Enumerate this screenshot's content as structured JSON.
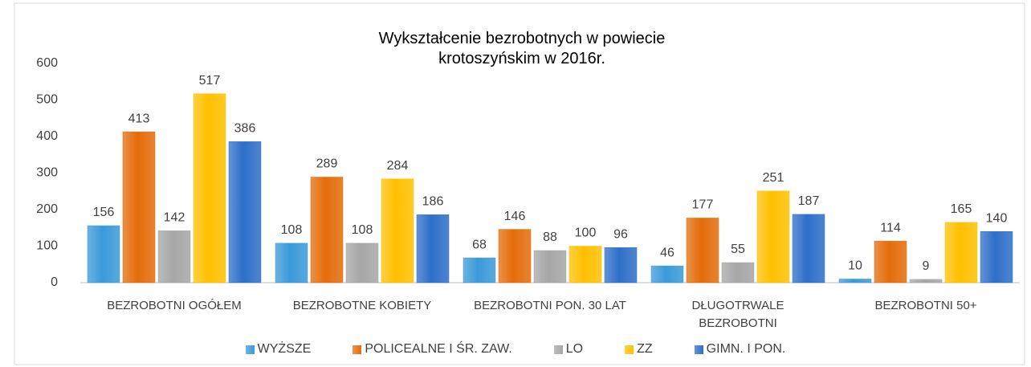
{
  "chart_data": {
    "type": "bar",
    "title": "Wykształcenie bezrobotnych w powiecie krotoszyńskim w 2016r.",
    "categories": [
      "BEZROBOTNI OGÓŁEM",
      "BEZROBOTNE KOBIETY",
      "BEZROBOTNI PON. 30 LAT",
      "DŁUGOTRWALE BEZROBOTNI",
      "BEZROBOTNI 50+"
    ],
    "series": [
      {
        "name": "WYŻSZE",
        "color": "#3a9ad9",
        "values": [
          156,
          108,
          68,
          46,
          10
        ]
      },
      {
        "name": "POLICEALNE I ŚR. ZAW.",
        "color": "#e46c0a",
        "values": [
          413,
          289,
          146,
          177,
          114
        ]
      },
      {
        "name": "LO",
        "color": "#a6a6a6",
        "values": [
          142,
          108,
          88,
          55,
          9
        ]
      },
      {
        "name": "ZZ",
        "color": "#ffc000",
        "values": [
          517,
          284,
          100,
          251,
          165
        ]
      },
      {
        "name": "GIMN. I PON.",
        "color": "#2e6fc9",
        "values": [
          386,
          186,
          96,
          187,
          140
        ]
      }
    ],
    "ylim": [
      0,
      600
    ],
    "yticks": [
      0,
      100,
      200,
      300,
      400,
      500,
      600
    ],
    "grid": false,
    "legend": "bottom"
  }
}
